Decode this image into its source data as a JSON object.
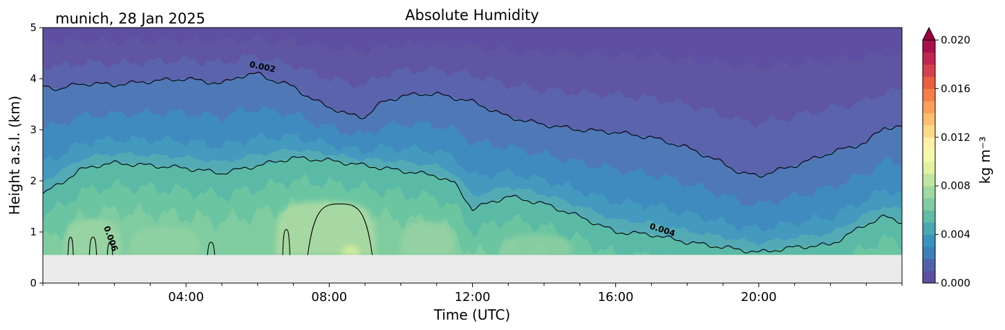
{
  "chart_data": {
    "type": "contour",
    "title": "Absolute Humidity",
    "location_label": "munich, 28 Jan 2025",
    "xlabel": "Time (UTC)",
    "ylabel": "Height a.s.l. (km)",
    "xlim": [
      0,
      24
    ],
    "ylim": [
      0,
      5
    ],
    "x_ticks": [
      4,
      8,
      12,
      16,
      20
    ],
    "x_tick_labels": [
      "04:00",
      "08:00",
      "12:00",
      "16:00",
      "20:00"
    ],
    "y_ticks": [
      0,
      1,
      2,
      3,
      4,
      5
    ],
    "y_tick_labels": [
      "0",
      "1",
      "2",
      "3",
      "4",
      "5"
    ],
    "data_floor_km": 0.55,
    "colorbar": {
      "label": "kg m⁻³",
      "range": [
        0.0,
        0.02
      ],
      "ticks": [
        0.0,
        0.004,
        0.008,
        0.012,
        0.016,
        0.02
      ],
      "tick_labels": [
        "0.000",
        "0.004",
        "0.008",
        "0.012",
        "0.016",
        "0.020"
      ],
      "extend": "max",
      "colormap": "Spectral_r"
    },
    "contour_labels": [
      "0.002",
      "0.004",
      "0.006"
    ],
    "contour_002": {
      "level": 0.002,
      "time_h": [
        0,
        0.5,
        1,
        1.5,
        2,
        3,
        4,
        5,
        5.5,
        6,
        6.5,
        7,
        7.5,
        8,
        8.5,
        9,
        9.5,
        10,
        10.5,
        11,
        12,
        13,
        14,
        15,
        16,
        17,
        18,
        19,
        19.5,
        20,
        21,
        22,
        23,
        23.5,
        24
      ],
      "height_km": [
        3.85,
        3.8,
        3.9,
        3.9,
        3.88,
        3.95,
        4.0,
        3.9,
        4.05,
        4.1,
        3.95,
        3.85,
        3.6,
        3.45,
        3.3,
        3.25,
        3.55,
        3.65,
        3.7,
        3.7,
        3.55,
        3.25,
        3.1,
        3.0,
        2.95,
        2.85,
        2.65,
        2.35,
        2.15,
        2.1,
        2.3,
        2.55,
        2.75,
        3.05,
        3.05
      ]
    },
    "contour_004": {
      "level": 0.004,
      "time_h": [
        0,
        0.5,
        1,
        1.5,
        2,
        3,
        4,
        5,
        6,
        7,
        8,
        9,
        10,
        11,
        11.5,
        12,
        13,
        14,
        15,
        16,
        17,
        18,
        19,
        20,
        21,
        22,
        23,
        23.5,
        24
      ],
      "height_km": [
        1.75,
        1.95,
        2.2,
        2.3,
        2.35,
        2.3,
        2.25,
        2.15,
        2.3,
        2.45,
        2.4,
        2.3,
        2.2,
        2.1,
        1.95,
        1.45,
        1.7,
        1.55,
        1.3,
        1.0,
        0.95,
        0.8,
        0.7,
        0.6,
        0.7,
        0.75,
        1.15,
        1.3,
        1.2
      ]
    },
    "contour_006_bumps_time_h": [
      [
        0.7,
        0.85
      ],
      [
        1.3,
        1.5
      ],
      [
        1.8,
        1.95
      ],
      [
        4.6,
        4.8
      ],
      [
        6.7,
        6.9
      ],
      [
        7.4,
        9.2
      ]
    ],
    "contour_006_bumps_peak_km": [
      0.9,
      0.9,
      0.8,
      0.8,
      1.05,
      1.55
    ]
  }
}
